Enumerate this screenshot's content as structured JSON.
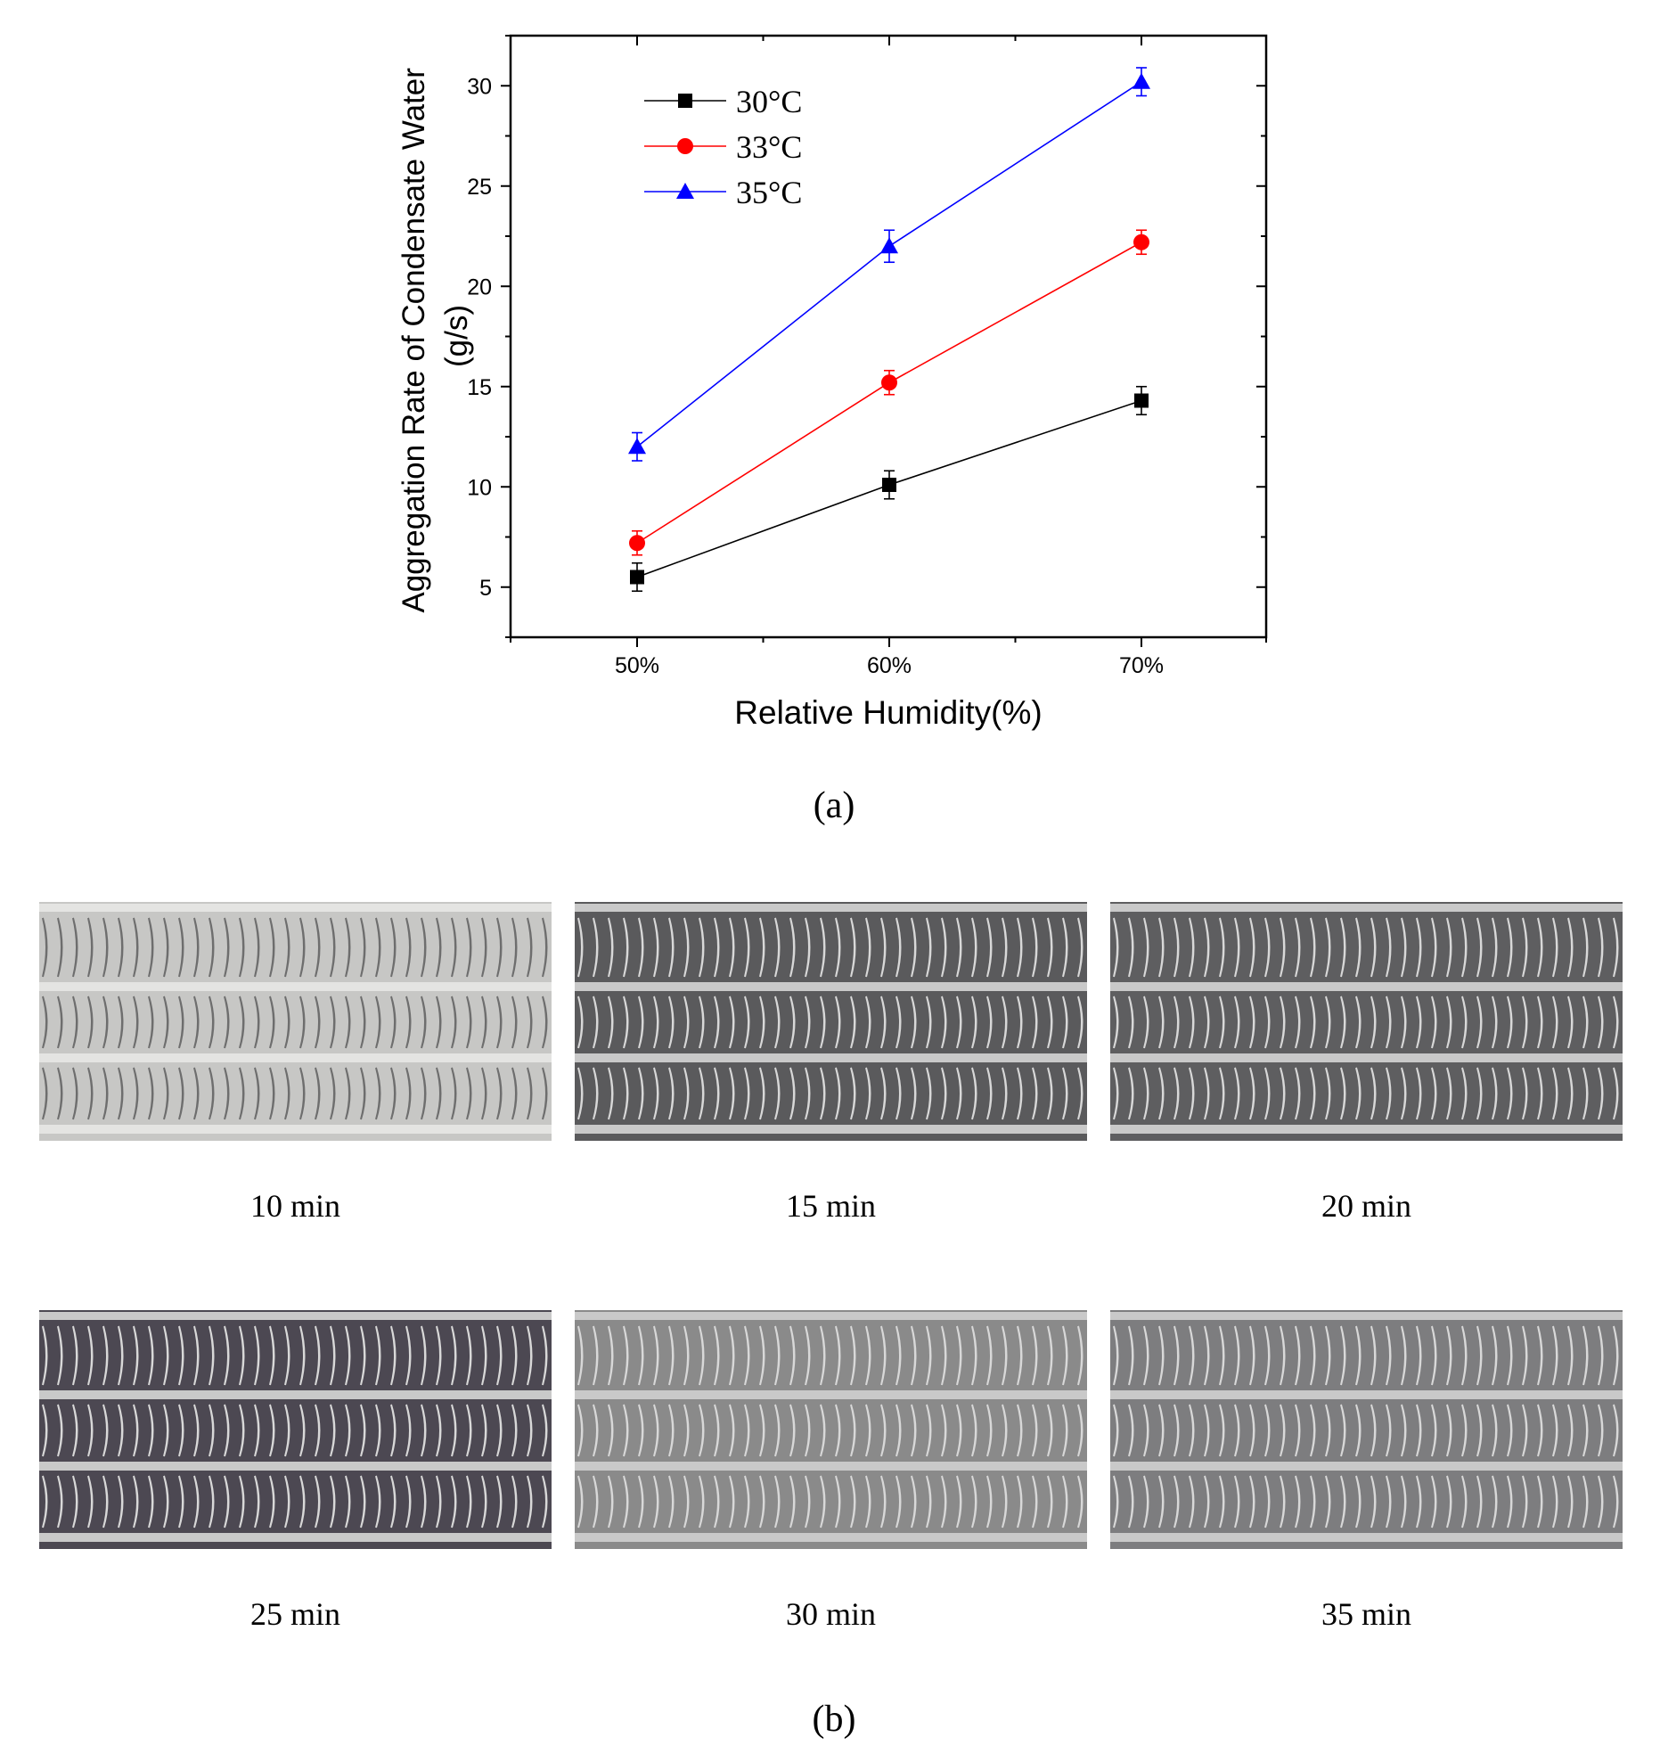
{
  "chart_data": {
    "type": "line",
    "xlabel": "Relative Humidity(%)",
    "ylabel": "Aggregation Rate of Condensate Water (g/s)",
    "ylabel_lines": [
      "Aggregation Rate of Condensate Water",
      "(g/s)"
    ],
    "categories": [
      "50%",
      "60%",
      "70%"
    ],
    "y_ticks": [
      5,
      10,
      15,
      20,
      25,
      30
    ],
    "ylim": [
      2.5,
      32.5
    ],
    "grid": false,
    "legend_position": "top-left",
    "error_bars": true,
    "series": [
      {
        "name": "30°C",
        "color": "#000000",
        "marker": "square",
        "values": [
          5.5,
          10.1,
          14.3
        ],
        "errors": [
          0.7,
          0.7,
          0.7
        ]
      },
      {
        "name": "33°C",
        "color": "#ff0000",
        "marker": "circle",
        "values": [
          7.2,
          15.2,
          22.2
        ],
        "errors": [
          0.6,
          0.6,
          0.6
        ]
      },
      {
        "name": "35°C",
        "color": "#0000ff",
        "marker": "triangle",
        "values": [
          12.0,
          22.0,
          30.2
        ],
        "errors": [
          0.7,
          0.8,
          0.7
        ]
      }
    ]
  },
  "panel_a_label": "(a)",
  "panel_b_label": "(b)",
  "photos": [
    {
      "caption": "10 min",
      "tone": "#c7c7c5"
    },
    {
      "caption": "15 min",
      "tone": "#5a5a5c"
    },
    {
      "caption": "20 min",
      "tone": "#5e5e60"
    },
    {
      "caption": "25 min",
      "tone": "#4c4852"
    },
    {
      "caption": "30 min",
      "tone": "#8a8a8a"
    },
    {
      "caption": "35 min",
      "tone": "#7d7d7f"
    }
  ]
}
